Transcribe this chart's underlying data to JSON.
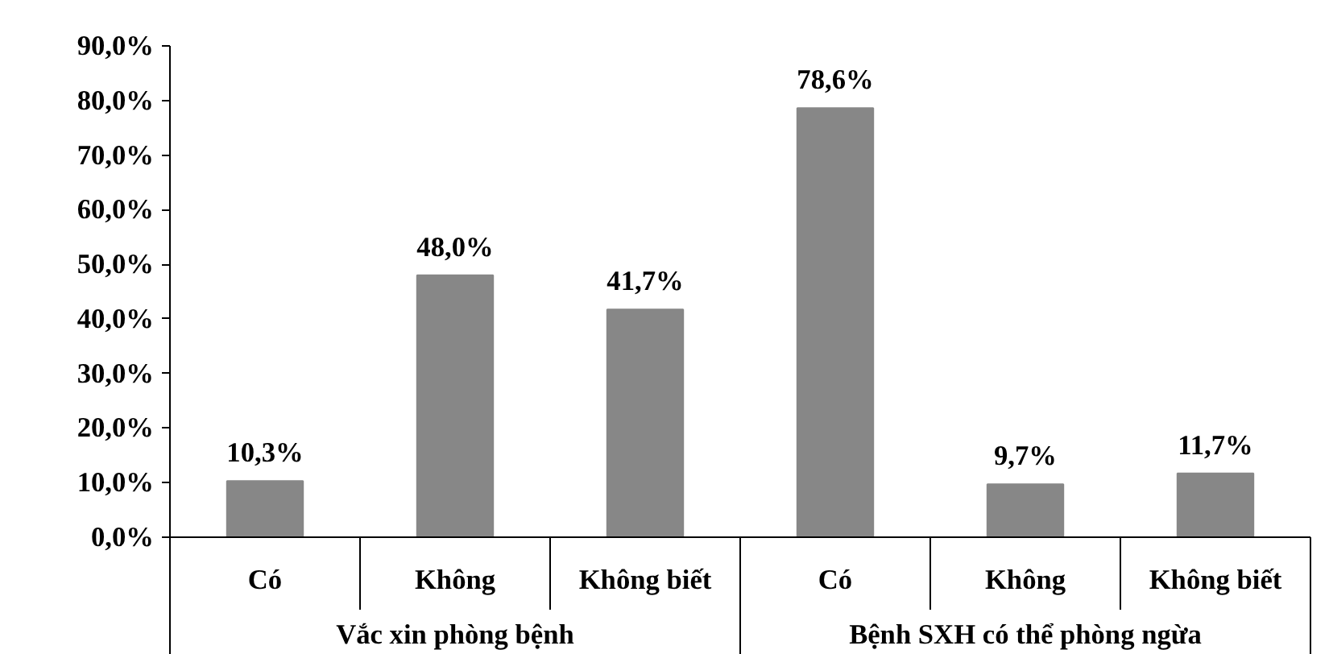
{
  "chart_data": {
    "type": "bar",
    "categories": [
      "Có",
      "Không",
      "Không biết",
      "Có",
      "Không",
      "Không biết"
    ],
    "values": [
      10.3,
      48.0,
      41.7,
      78.6,
      9.7,
      11.7
    ],
    "value_labels": [
      "10,3%",
      "48,0%",
      "41,7%",
      "78,6%",
      "9,7%",
      "11,7%"
    ],
    "color": "#878787",
    "ylim": [
      0,
      90
    ],
    "yticks": [
      {
        "value": 0,
        "label": "0,0%"
      },
      {
        "value": 10,
        "label": "10,0%"
      },
      {
        "value": 20,
        "label": "20,0%"
      },
      {
        "value": 30,
        "label": "30,0%"
      },
      {
        "value": 40,
        "label": "40,0%"
      },
      {
        "value": 50,
        "label": "50,0%"
      },
      {
        "value": 60,
        "label": "60,0%"
      },
      {
        "value": 70,
        "label": "70,0%"
      },
      {
        "value": 80,
        "label": "80,0%"
      },
      {
        "value": 90,
        "label": "90,0%"
      }
    ],
    "annotations": [
      "Vắc xin phòng bệnh",
      "Bệnh SXH có thể phòng ngừa"
    ],
    "grid": false,
    "legend": false
  }
}
